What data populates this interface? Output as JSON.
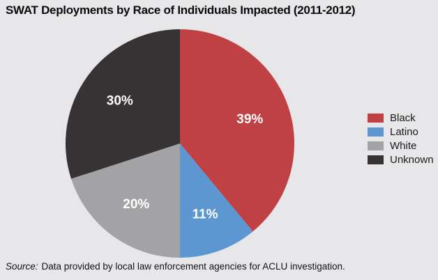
{
  "title": "SWAT Deployments by Race of Individuals Impacted (2011-2012)",
  "source": {
    "label": "Source:",
    "text": "Data provided by local law enforcement agencies for ACLU investigation."
  },
  "colors": {
    "background": "#e7e7e9",
    "title_text": "#0a0a0a",
    "source_text": "#121212",
    "legend_text": "#1a1a1a",
    "slice_label_text": "#ffffff"
  },
  "chart_data": {
    "type": "pie",
    "title": "SWAT Deployments by Race of Individuals Impacted (2011-2012)",
    "values_unit": "percent",
    "start_angle_deg": 0,
    "direction": "clockwise",
    "legend_position": "right",
    "slices": [
      {
        "label": "Black",
        "value": 39,
        "display": "39%",
        "color": "#c04144"
      },
      {
        "label": "Latino",
        "value": 11,
        "display": "11%",
        "color": "#5c97d2"
      },
      {
        "label": "White",
        "value": 20,
        "display": "20%",
        "color": "#a3a3a5"
      },
      {
        "label": "Unknown",
        "value": 30,
        "display": "30%",
        "color": "#373334"
      }
    ]
  }
}
